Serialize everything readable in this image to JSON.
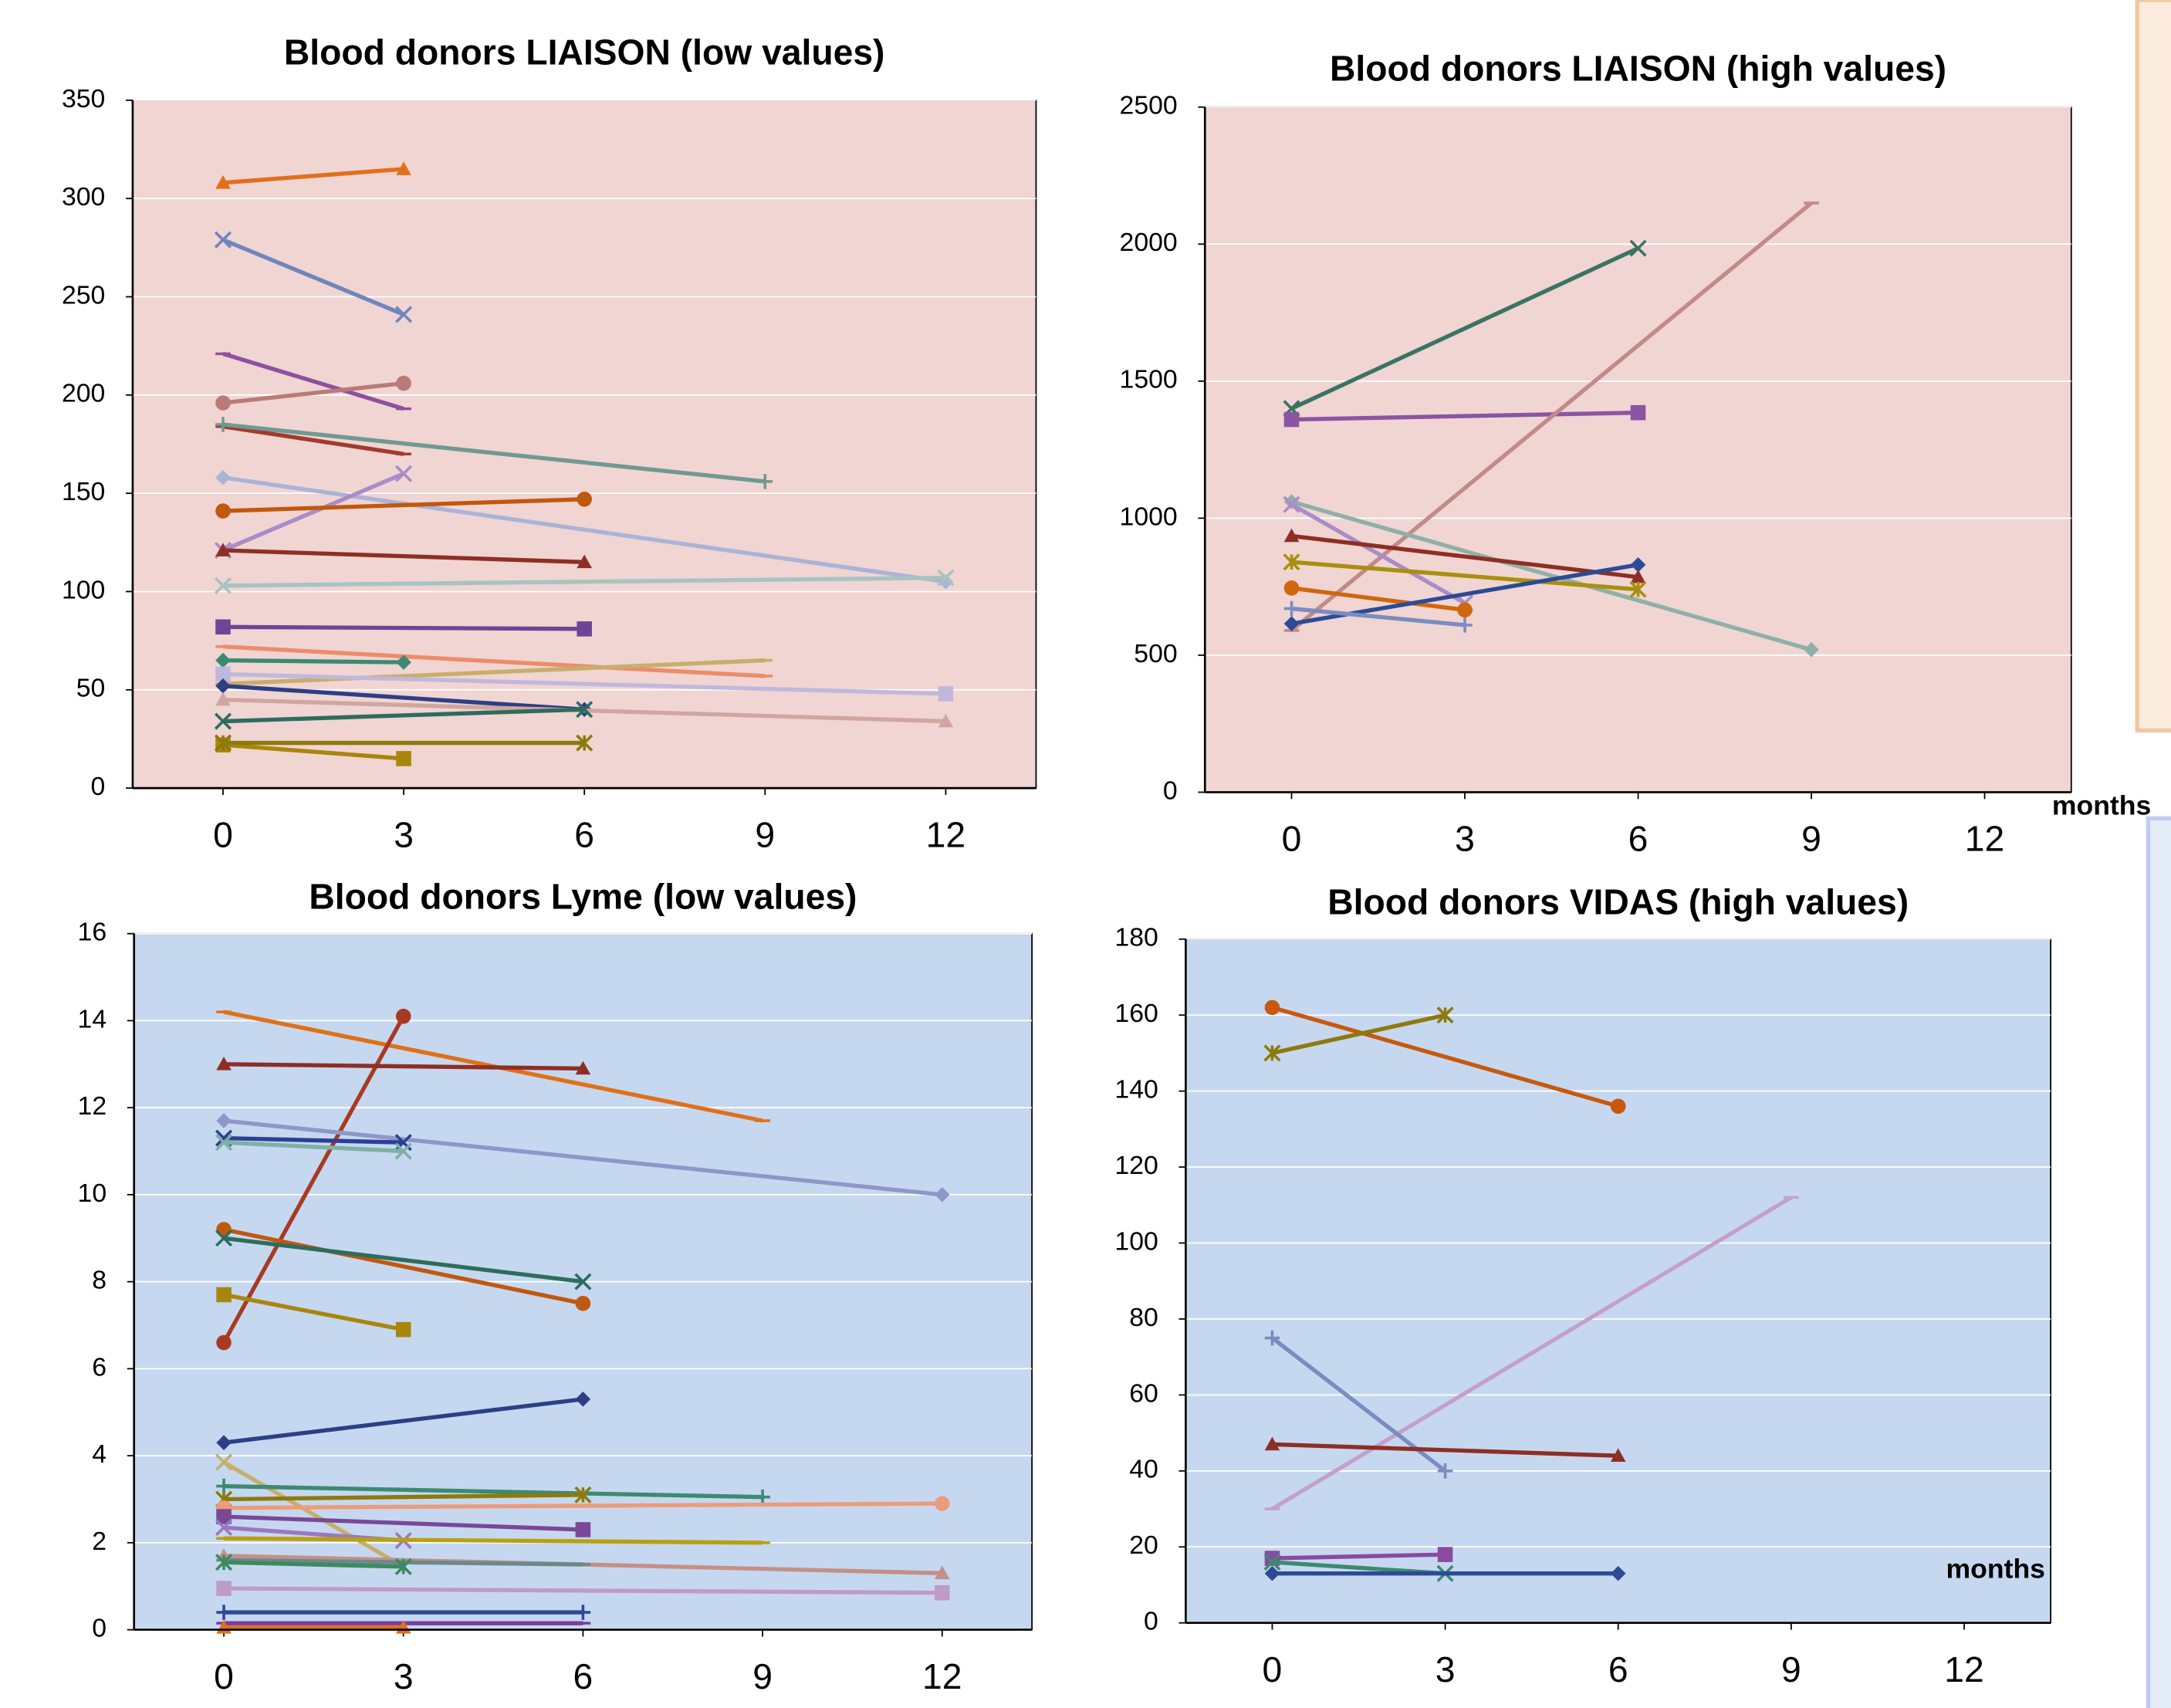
{
  "chart_data": [
    {
      "type": "line",
      "title": "Blood donors LIAISON (low values)",
      "background": "#f0d5d2",
      "grid": true,
      "xlim": [
        -1.5,
        13.5
      ],
      "xticks": [
        0,
        3,
        6,
        9,
        12
      ],
      "ylim": [
        0,
        350
      ],
      "yticks": [
        0,
        50,
        100,
        150,
        200,
        250,
        300,
        350
      ],
      "series": [
        {
          "color": "#e0701a",
          "marker": "triangle",
          "x": [
            0,
            3
          ],
          "values": [
            308,
            315
          ]
        },
        {
          "color": "#6f85bd",
          "marker": "x",
          "x": [
            0,
            3
          ],
          "values": [
            279,
            241
          ]
        },
        {
          "color": "#8e50a0",
          "marker": "dash",
          "x": [
            0,
            3
          ],
          "values": [
            221,
            193
          ]
        },
        {
          "color": "#b97a78",
          "marker": "circle",
          "x": [
            0,
            3
          ],
          "values": [
            196,
            206
          ]
        },
        {
          "color": "#a23a2e",
          "marker": "dash",
          "x": [
            0,
            3
          ],
          "values": [
            184,
            170
          ]
        },
        {
          "color": "#6f9a90",
          "marker": "plus",
          "x": [
            0,
            9
          ],
          "values": [
            185,
            156
          ]
        },
        {
          "color": "#aab3d8",
          "marker": "diamond",
          "x": [
            0,
            12
          ],
          "values": [
            158,
            105
          ]
        },
        {
          "color": "#a98cc8",
          "marker": "x",
          "x": [
            0,
            3
          ],
          "values": [
            121,
            160
          ]
        },
        {
          "color": "#c0580e",
          "marker": "circle",
          "x": [
            0,
            6
          ],
          "values": [
            141,
            147
          ]
        },
        {
          "color": "#8e2e25",
          "marker": "triangle",
          "x": [
            0,
            6
          ],
          "values": [
            121,
            115
          ]
        },
        {
          "color": "#a6c4c0",
          "marker": "x",
          "x": [
            0,
            12
          ],
          "values": [
            103,
            107
          ]
        },
        {
          "color": "#6e4596",
          "marker": "square",
          "x": [
            0,
            6
          ],
          "values": [
            82,
            81
          ]
        },
        {
          "color": "#ec8c6a",
          "marker": "dash",
          "x": [
            0,
            9
          ],
          "values": [
            72,
            57
          ]
        },
        {
          "color": "#3c8a72",
          "marker": "diamond",
          "x": [
            0,
            3
          ],
          "values": [
            65,
            64
          ]
        },
        {
          "color": "#c8ae6c",
          "marker": "dash",
          "x": [
            0,
            9
          ],
          "values": [
            53,
            65
          ]
        },
        {
          "color": "#c0b8dc",
          "marker": "square",
          "x": [
            0,
            12
          ],
          "values": [
            58,
            48
          ]
        },
        {
          "color": "#2c3f86",
          "marker": "diamond",
          "x": [
            0,
            6
          ],
          "values": [
            52,
            40
          ]
        },
        {
          "color": "#d0a6a0",
          "marker": "triangle",
          "x": [
            0,
            12
          ],
          "values": [
            45,
            34
          ]
        },
        {
          "color": "#2e6c5e",
          "marker": "x",
          "x": [
            0,
            6
          ],
          "values": [
            34,
            40
          ]
        },
        {
          "color": "#a8860e",
          "marker": "square",
          "x": [
            0,
            3
          ],
          "values": [
            22,
            15
          ]
        },
        {
          "color": "#8c7a0c",
          "marker": "star",
          "x": [
            0,
            6
          ],
          "values": [
            23,
            23
          ]
        }
      ]
    },
    {
      "type": "line",
      "title": "Blood donors LIAISON (high values)",
      "background": "#f0d5d2",
      "grid": true,
      "annotation": "months",
      "xlim": [
        -1.5,
        13.5
      ],
      "xticks": [
        0,
        3,
        6,
        9,
        12
      ],
      "ylim": [
        0,
        2500
      ],
      "yticks": [
        0,
        500,
        1000,
        1500,
        2000,
        2500
      ],
      "series": [
        {
          "color": "#3b7364",
          "marker": "x",
          "x": [
            0,
            6
          ],
          "values": [
            1400,
            1985
          ]
        },
        {
          "color": "#8a55a2",
          "marker": "square",
          "x": [
            0,
            6
          ],
          "values": [
            1360,
            1385
          ]
        },
        {
          "color": "#c28a88",
          "marker": "dash",
          "x": [
            0,
            9
          ],
          "values": [
            590,
            2150
          ]
        },
        {
          "color": "#8fb0a8",
          "marker": "diamond",
          "x": [
            0,
            9
          ],
          "values": [
            1060,
            520
          ]
        },
        {
          "color": "#a98cc8",
          "marker": "x",
          "x": [
            0,
            3
          ],
          "values": [
            1050,
            690
          ]
        },
        {
          "color": "#8e2e25",
          "marker": "triangle",
          "x": [
            0,
            6
          ],
          "values": [
            935,
            785
          ]
        },
        {
          "color": "#a8900e",
          "marker": "star",
          "x": [
            0,
            6
          ],
          "values": [
            840,
            740
          ]
        },
        {
          "color": "#d0660e",
          "marker": "circle",
          "x": [
            0,
            3
          ],
          "values": [
            745,
            665
          ]
        },
        {
          "color": "#2c4a96",
          "marker": "diamond",
          "x": [
            0,
            6
          ],
          "values": [
            615,
            830
          ]
        },
        {
          "color": "#7a8cc0",
          "marker": "plus",
          "x": [
            0,
            3
          ],
          "values": [
            670,
            610
          ]
        }
      ]
    },
    {
      "type": "line",
      "title": "Blood donors Lyme (low values)",
      "background": "#c6d8f0",
      "grid": true,
      "xlim": [
        -1.5,
        13.5
      ],
      "xticks": [
        0,
        3,
        6,
        9,
        12
      ],
      "ylim": [
        0,
        16
      ],
      "yticks": [
        0,
        2,
        4,
        6,
        8,
        10,
        12,
        14,
        16
      ],
      "series": [
        {
          "color": "#e0701a",
          "marker": "dash",
          "x": [
            0,
            9
          ],
          "values": [
            14.2,
            11.7
          ]
        },
        {
          "color": "#a83a22",
          "marker": "circle",
          "x": [
            0,
            3
          ],
          "values": [
            6.6,
            14.1
          ]
        },
        {
          "color": "#8e2e25",
          "marker": "triangle",
          "x": [
            0,
            6
          ],
          "values": [
            13.0,
            12.9
          ]
        },
        {
          "color": "#8f96c8",
          "marker": "diamond",
          "x": [
            0,
            12
          ],
          "values": [
            11.7,
            10.0
          ]
        },
        {
          "color": "#2c3f96",
          "marker": "x",
          "x": [
            0,
            3
          ],
          "values": [
            11.3,
            11.2
          ]
        },
        {
          "color": "#7fb0a4",
          "marker": "x",
          "x": [
            0,
            3
          ],
          "values": [
            11.2,
            11.0
          ]
        },
        {
          "color": "#c0580e",
          "marker": "circle",
          "x": [
            0,
            6
          ],
          "values": [
            9.2,
            7.5
          ]
        },
        {
          "color": "#2e6c5e",
          "marker": "x",
          "x": [
            0,
            6
          ],
          "values": [
            9.0,
            8.0
          ]
        },
        {
          "color": "#a8860e",
          "marker": "square",
          "x": [
            0,
            3
          ],
          "values": [
            7.7,
            6.9
          ]
        },
        {
          "color": "#2c3f86",
          "marker": "diamond",
          "x": [
            0,
            6
          ],
          "values": [
            4.3,
            5.3
          ]
        },
        {
          "color": "#c8ae6c",
          "marker": "x",
          "x": [
            0,
            3
          ],
          "values": [
            3.85,
            1.45
          ]
        },
        {
          "color": "#3c8a72",
          "marker": "plus",
          "x": [
            0,
            9
          ],
          "values": [
            3.3,
            3.05
          ]
        },
        {
          "color": "#8c7a0c",
          "marker": "star",
          "x": [
            0,
            6
          ],
          "values": [
            3.0,
            3.1
          ]
        },
        {
          "color": "#ec9c7a",
          "marker": "circle",
          "x": [
            0,
            12
          ],
          "values": [
            2.8,
            2.9
          ]
        },
        {
          "color": "#7a4896",
          "marker": "square",
          "x": [
            0,
            6
          ],
          "values": [
            2.6,
            2.3
          ]
        },
        {
          "color": "#9a78c0",
          "marker": "x",
          "x": [
            0,
            3
          ],
          "values": [
            2.35,
            2.05
          ]
        },
        {
          "color": "#b8a010",
          "marker": "dash",
          "x": [
            0,
            9
          ],
          "values": [
            2.1,
            2.0
          ]
        },
        {
          "color": "#c49088",
          "marker": "triangle",
          "x": [
            0,
            12
          ],
          "values": [
            1.7,
            1.3
          ]
        },
        {
          "color": "#6a8a8a",
          "marker": "dash",
          "x": [
            0,
            6
          ],
          "values": [
            1.6,
            1.5
          ]
        },
        {
          "color": "#3c8a60",
          "marker": "star",
          "x": [
            0,
            3
          ],
          "values": [
            1.55,
            1.45
          ]
        },
        {
          "color": "#c09ac8",
          "marker": "square",
          "x": [
            0,
            12
          ],
          "values": [
            0.95,
            0.85
          ]
        },
        {
          "color": "#2c4a96",
          "marker": "plus",
          "x": [
            0,
            6
          ],
          "values": [
            0.4,
            0.4
          ]
        },
        {
          "color": "#7a3c9a",
          "marker": "dash",
          "x": [
            0,
            6
          ],
          "values": [
            0.15,
            0.15
          ]
        },
        {
          "color": "#e0701a",
          "marker": "triangle",
          "x": [
            0,
            3
          ],
          "values": [
            0.05,
            0.05
          ]
        }
      ]
    },
    {
      "type": "line",
      "title": "Blood donors VIDAS (high values)",
      "background": "#c6d8f0",
      "grid": true,
      "annotation": "months",
      "xlim": [
        -1.5,
        13.5
      ],
      "xticks": [
        0,
        3,
        6,
        9,
        12
      ],
      "ylim": [
        0,
        180
      ],
      "yticks": [
        0,
        20,
        40,
        60,
        80,
        100,
        120,
        140,
        160,
        180
      ],
      "series": [
        {
          "color": "#c8580e",
          "marker": "circle",
          "x": [
            0,
            6
          ],
          "values": [
            162,
            136
          ]
        },
        {
          "color": "#8c7a0c",
          "marker": "star",
          "x": [
            0,
            3
          ],
          "values": [
            150,
            160
          ]
        },
        {
          "color": "#c4a0cc",
          "marker": "dash",
          "x": [
            0,
            9
          ],
          "values": [
            30,
            112
          ]
        },
        {
          "color": "#7a8cc0",
          "marker": "plus",
          "x": [
            0,
            3
          ],
          "values": [
            75,
            40
          ]
        },
        {
          "color": "#8e2e25",
          "marker": "triangle",
          "x": [
            0,
            6
          ],
          "values": [
            47,
            44
          ]
        },
        {
          "color": "#8a4aa2",
          "marker": "square",
          "x": [
            0,
            3
          ],
          "values": [
            17,
            18
          ]
        },
        {
          "color": "#3c8a72",
          "marker": "x",
          "x": [
            0,
            3
          ],
          "values": [
            16,
            13
          ]
        },
        {
          "color": "#2c4a96",
          "marker": "diamond",
          "x": [
            0,
            6
          ],
          "values": [
            13,
            13
          ]
        }
      ]
    }
  ]
}
